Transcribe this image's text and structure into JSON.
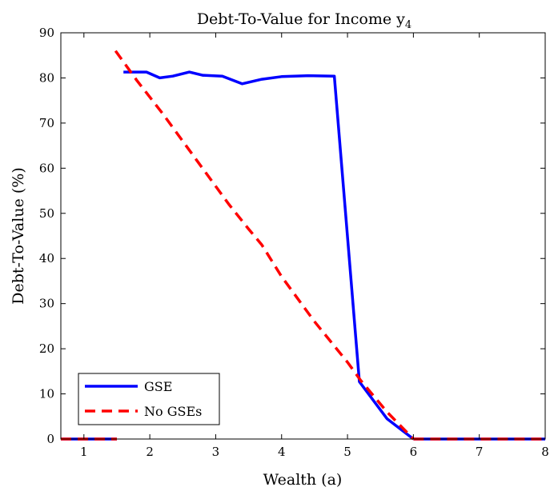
{
  "chart_data": {
    "type": "line",
    "title": "Debt-To-Value for Income y",
    "title_subscript": "4",
    "xlabel": "Wealth (a)",
    "ylabel": "Debt-To-Value (%)",
    "xlim": [
      0.65,
      8
    ],
    "ylim": [
      0,
      90
    ],
    "xticks": [
      1,
      2,
      3,
      4,
      5,
      6,
      7,
      8
    ],
    "yticks": [
      0,
      10,
      20,
      30,
      40,
      50,
      60,
      70,
      80,
      90
    ],
    "grid": false,
    "legend_position": "bottom-left",
    "series": [
      {
        "name": "GSE",
        "color": "#0000ff",
        "style": "solid",
        "segments": [
          [
            [
              0.65,
              0
            ],
            [
              1.5,
              0
            ]
          ],
          [
            [
              1.6,
              81.3
            ],
            [
              1.85,
              81.3
            ],
            [
              1.95,
              81.3
            ],
            [
              2.15,
              80.0
            ],
            [
              2.35,
              80.4
            ],
            [
              2.6,
              81.3
            ],
            [
              2.8,
              80.6
            ],
            [
              3.1,
              80.4
            ],
            [
              3.4,
              78.7
            ],
            [
              3.7,
              79.7
            ],
            [
              4.0,
              80.3
            ],
            [
              4.4,
              80.5
            ],
            [
              4.8,
              80.4
            ],
            [
              5.18,
              12.7
            ],
            [
              5.6,
              4.5
            ],
            [
              6.0,
              0
            ]
          ],
          [
            [
              6.0,
              0
            ],
            [
              8.0,
              0
            ]
          ]
        ]
      },
      {
        "name": "No GSEs",
        "color": "#ff0000",
        "style": "dashed",
        "segments": [
          [
            [
              0.65,
              0
            ],
            [
              1.5,
              0
            ]
          ],
          [
            [
              1.48,
              86.0
            ],
            [
              1.8,
              79.5
            ],
            [
              2.2,
              72.0
            ],
            [
              2.6,
              64.0
            ],
            [
              3.0,
              56.0
            ],
            [
              3.2,
              52.0
            ],
            [
              3.5,
              46.5
            ],
            [
              3.7,
              43.0
            ],
            [
              4.0,
              36.0
            ],
            [
              4.5,
              26.0
            ],
            [
              5.0,
              17.0
            ],
            [
              5.2,
              13.0
            ],
            [
              5.6,
              6.0
            ],
            [
              6.0,
              0
            ]
          ],
          [
            [
              6.0,
              0
            ],
            [
              8.0,
              0
            ]
          ]
        ]
      }
    ]
  }
}
